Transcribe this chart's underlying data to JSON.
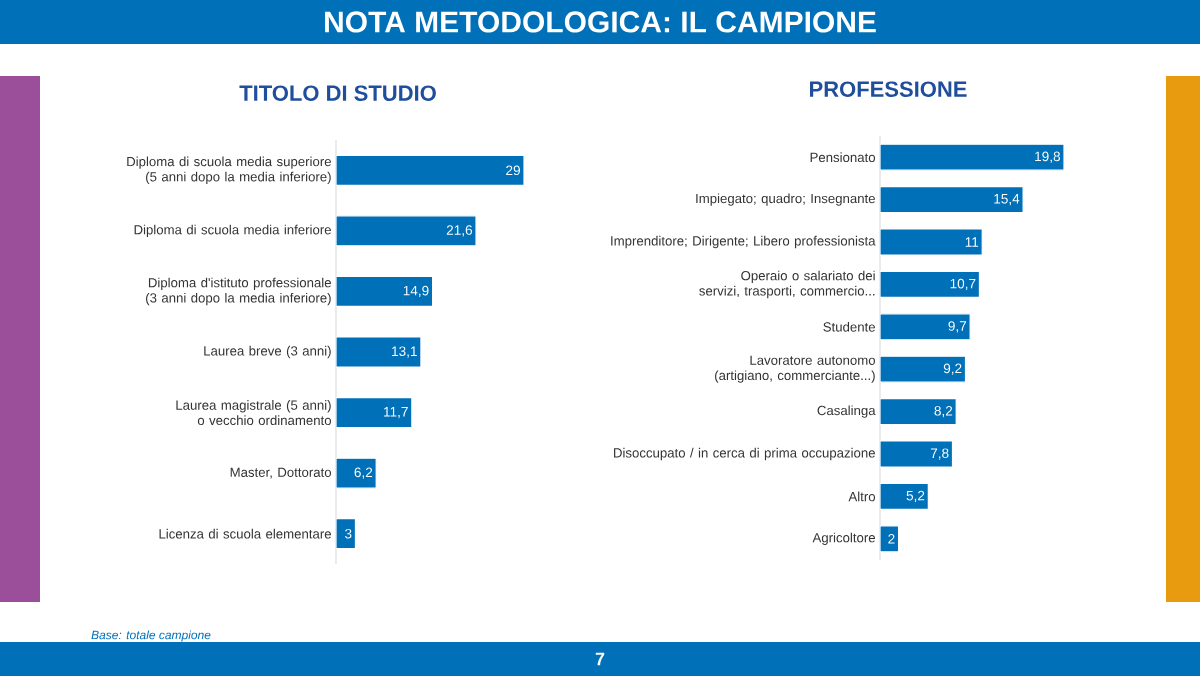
{
  "chart_data": [
    {
      "type": "bar",
      "orientation": "horizontal",
      "title": "TITOLO DI STUDIO",
      "color": "#0070b8",
      "categories": [
        "Diploma di scuola media superiore (5 anni dopo la media inferiore)",
        "Diploma di scuola media inferiore",
        "Diploma d'istituto professionale (3 anni dopo la media inferiore)",
        "Laurea breve (3 anni)",
        "Laurea magistrale (5 anni) o vecchio ordinamento",
        "Master, Dottorato",
        "Licenza di scuola elementare"
      ],
      "values": [
        29,
        21.6,
        14.9,
        13.1,
        11.7,
        6.2,
        3
      ],
      "value_labels": [
        "29",
        "21,6",
        "14,9",
        "13,1",
        "11,7",
        "6,2",
        "3"
      ],
      "annotations": [
        "NOTA METODOLOGICA: IL CAMPIONE",
        "Base: totale campione",
        "7"
      ]
    },
    {
      "type": "bar",
      "orientation": "horizontal",
      "title": "PROFESSIONE",
      "color": "#0070b8",
      "categories": [
        "Pensionato",
        "Impiegato; quadro; Insegnante",
        "Imprenditore; Dirigente; Libero professionista",
        "Operaio o salariato dei servizi, trasporti, commercio...",
        "Studente",
        "Lavoratore autonomo (artigiano, commerciante...)",
        "Casalinga",
        "Disoccupato / in cerca di prima occupazione",
        "Altro",
        "Agricoltore"
      ],
      "values": [
        19.8,
        15.4,
        11,
        10.7,
        9.7,
        9.2,
        8.2,
        7.8,
        5.2,
        2
      ],
      "value_labels": [
        "19,8",
        "15,4",
        "11",
        "10,7",
        "9,7",
        "9,2",
        "8,2",
        "7,8",
        "5,2",
        "2"
      ]
    }
  ]
}
